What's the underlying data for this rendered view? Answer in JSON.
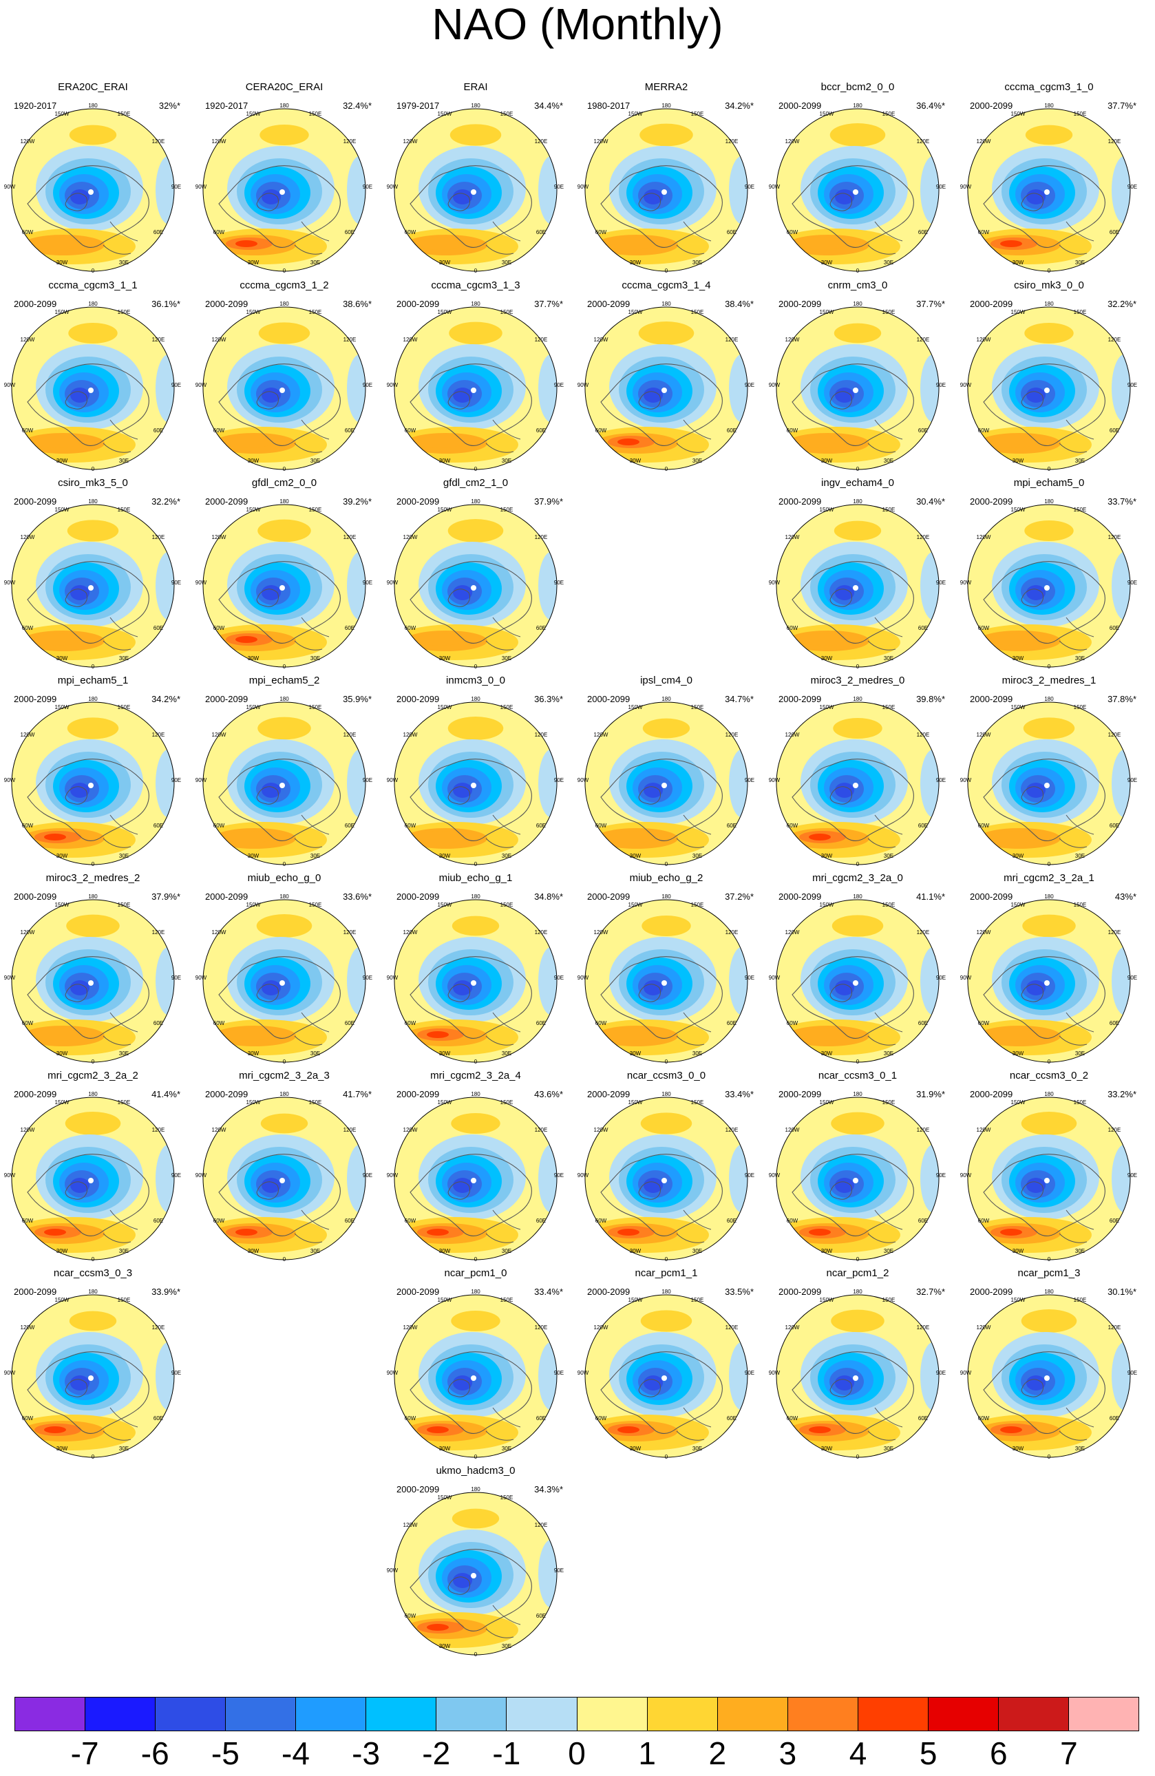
{
  "title": "NAO (Monthly)",
  "lon_labels": [
    "180",
    "150W",
    "150E",
    "120W",
    "120E",
    "90W",
    "90E",
    "60W",
    "60E",
    "30W",
    "30E",
    "0"
  ],
  "colorbar": {
    "colors": [
      "#8a2be2",
      "#1a1aff",
      "#2e4de6",
      "#3370e6",
      "#1f9cff",
      "#00c0ff",
      "#7fc8f0",
      "#b6def5",
      "#fff68f",
      "#ffd633",
      "#ffad1f",
      "#ff7f1f",
      "#ff3f00",
      "#e60000",
      "#cc1a1a",
      "#ffb3b3"
    ],
    "labels": [
      "-7",
      "-6",
      "-5",
      "-4",
      "-3",
      "-2",
      "-1",
      "0",
      "1",
      "2",
      "3",
      "4",
      "5",
      "6",
      "7"
    ]
  },
  "panels": [
    {
      "name": "ERA20C_ERAI",
      "period": "1920-2017",
      "pct": "32%*"
    },
    {
      "name": "CERA20C_ERAI",
      "period": "1920-2017",
      "pct": "32.4%*"
    },
    {
      "name": "ERAI",
      "period": "1979-2017",
      "pct": "34.4%*"
    },
    {
      "name": "MERRA2",
      "period": "1980-2017",
      "pct": "34.2%*"
    },
    {
      "name": "bccr_bcm2_0_0",
      "period": "2000-2099",
      "pct": "36.4%*"
    },
    {
      "name": "cccma_cgcm3_1_0",
      "period": "2000-2099",
      "pct": "37.7%*"
    },
    {
      "name": "cccma_cgcm3_1_1",
      "period": "2000-2099",
      "pct": "36.1%*"
    },
    {
      "name": "cccma_cgcm3_1_2",
      "period": "2000-2099",
      "pct": "38.6%*"
    },
    {
      "name": "cccma_cgcm3_1_3",
      "period": "2000-2099",
      "pct": "37.7%*"
    },
    {
      "name": "cccma_cgcm3_1_4",
      "period": "2000-2099",
      "pct": "38.4%*"
    },
    {
      "name": "cnrm_cm3_0",
      "period": "2000-2099",
      "pct": "37.7%*"
    },
    {
      "name": "csiro_mk3_0_0",
      "period": "2000-2099",
      "pct": "32.2%*"
    },
    {
      "name": "csiro_mk3_5_0",
      "period": "2000-2099",
      "pct": "32.2%*"
    },
    {
      "name": "gfdl_cm2_0_0",
      "period": "2000-2099",
      "pct": "39.2%*"
    },
    {
      "name": "gfdl_cm2_1_0",
      "period": "2000-2099",
      "pct": "37.9%*"
    },
    {
      "name": "ingv_echam4_0",
      "period": "2000-2099",
      "pct": "30.4%*"
    },
    {
      "name": "mpi_echam5_0",
      "period": "2000-2099",
      "pct": "33.7%*"
    },
    {
      "name": "mpi_echam5_1",
      "period": "2000-2099",
      "pct": "34.2%*"
    },
    {
      "name": "mpi_echam5_2",
      "period": "2000-2099",
      "pct": "35.9%*"
    },
    {
      "name": "inmcm3_0_0",
      "period": "2000-2099",
      "pct": "36.3%*"
    },
    {
      "name": "ipsl_cm4_0",
      "period": "2000-2099",
      "pct": "34.7%*"
    },
    {
      "name": "miroc3_2_medres_0",
      "period": "2000-2099",
      "pct": "39.8%*"
    },
    {
      "name": "miroc3_2_medres_1",
      "period": "2000-2099",
      "pct": "37.8%*"
    },
    {
      "name": "miroc3_2_medres_2",
      "period": "2000-2099",
      "pct": "37.9%*"
    },
    {
      "name": "miub_echo_g_0",
      "period": "2000-2099",
      "pct": "33.6%*"
    },
    {
      "name": "miub_echo_g_1",
      "period": "2000-2099",
      "pct": "34.8%*"
    },
    {
      "name": "miub_echo_g_2",
      "period": "2000-2099",
      "pct": "37.2%*"
    },
    {
      "name": "mri_cgcm2_3_2a_0",
      "period": "2000-2099",
      "pct": "41.1%*"
    },
    {
      "name": "mri_cgcm2_3_2a_1",
      "period": "2000-2099",
      "pct": "43%*"
    },
    {
      "name": "mri_cgcm2_3_2a_2",
      "period": "2000-2099",
      "pct": "41.4%*"
    },
    {
      "name": "mri_cgcm2_3_2a_3",
      "period": "2000-2099",
      "pct": "41.7%*"
    },
    {
      "name": "mri_cgcm2_3_2a_4",
      "period": "2000-2099",
      "pct": "43.6%*"
    },
    {
      "name": "ncar_ccsm3_0_0",
      "period": "2000-2099",
      "pct": "33.4%*"
    },
    {
      "name": "ncar_ccsm3_0_1",
      "period": "2000-2099",
      "pct": "31.9%*"
    },
    {
      "name": "ncar_ccsm3_0_2",
      "period": "2000-2099",
      "pct": "33.2%*"
    },
    {
      "name": "ncar_ccsm3_0_3",
      "period": "2000-2099",
      "pct": "33.9%*"
    },
    {
      "name": "ncar_pcm1_0",
      "period": "2000-2099",
      "pct": "33.4%*"
    },
    {
      "name": "ncar_pcm1_1",
      "period": "2000-2099",
      "pct": "33.5%*"
    },
    {
      "name": "ncar_pcm1_2",
      "period": "2000-2099",
      "pct": "32.7%*"
    },
    {
      "name": "ncar_pcm1_3",
      "period": "2000-2099",
      "pct": "30.1%*"
    },
    {
      "name": "ukmo_hadcm3_0",
      "period": "2000-2099",
      "pct": "34.3%*"
    }
  ]
}
